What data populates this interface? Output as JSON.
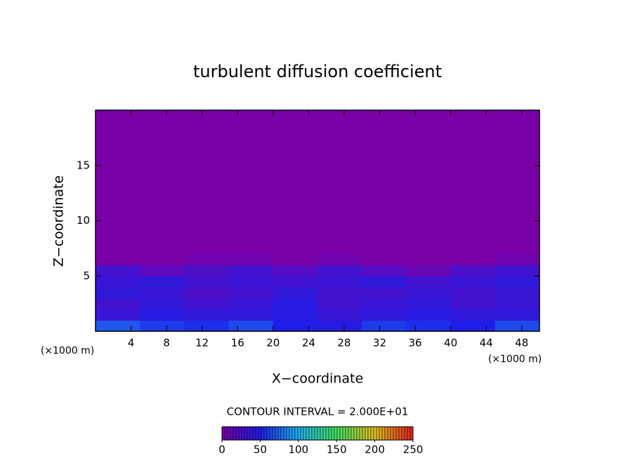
{
  "chart_data": {
    "type": "heatmap",
    "title": "turbulent diffusion coefficient",
    "x_label": "X−coordinate",
    "y_label": "Z−coordinate",
    "x_unit": "(×1000 m)",
    "y_unit": "(×1000 m)",
    "contour_interval_label": "CONTOUR INTERVAL = 2.000E+01",
    "xlim": [
      0,
      50
    ],
    "ylim": [
      0,
      20
    ],
    "xticks": [
      4,
      8,
      12,
      16,
      20,
      24,
      28,
      32,
      36,
      40,
      44,
      48
    ],
    "yticks": [
      5,
      10,
      15
    ],
    "x": [
      2.5,
      7.5,
      12.5,
      17.5,
      22.5,
      27.5,
      32.5,
      37.5,
      42.5,
      47.5
    ],
    "y": [
      0.5,
      1.5,
      2.5,
      3.5,
      4.5,
      5.5,
      6.5
    ],
    "z": [
      [
        70,
        60,
        55,
        65,
        50,
        45,
        60,
        55,
        50,
        65
      ],
      [
        35,
        45,
        40,
        40,
        45,
        35,
        40,
        45,
        40,
        40
      ],
      [
        30,
        40,
        30,
        35,
        45,
        30,
        35,
        40,
        30,
        35
      ],
      [
        40,
        35,
        25,
        30,
        40,
        30,
        30,
        35,
        30,
        35
      ],
      [
        35,
        40,
        30,
        35,
        30,
        35,
        40,
        30,
        35,
        40
      ],
      [
        30,
        15,
        25,
        30,
        20,
        30,
        20,
        10,
        25,
        30
      ],
      [
        0,
        0,
        5,
        5,
        0,
        5,
        0,
        0,
        0,
        5
      ]
    ],
    "clim": [
      0,
      250
    ],
    "colorbar_ticks": [
      0,
      50,
      100,
      150,
      200,
      250
    ],
    "colormap": [
      "#7a00a8",
      "#1e1ee8",
      "#20b0f0",
      "#40e060",
      "#e0c020",
      "#e02020"
    ],
    "background_color": "#7a00a8"
  }
}
